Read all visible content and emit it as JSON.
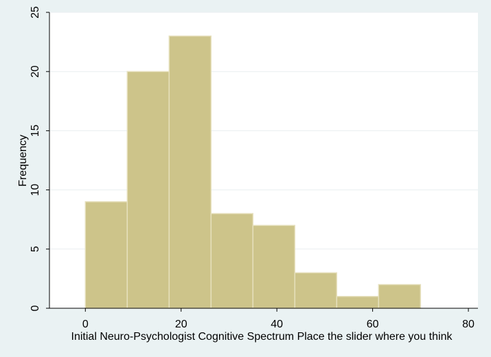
{
  "chart_data": {
    "type": "bar",
    "xlabel": "Initial Neuro-Psychologist Cognitive Spectrum  Place the slider where you think",
    "ylabel": "Frequency",
    "xlim": [
      -7.5,
      82
    ],
    "ylim": [
      0,
      25
    ],
    "xticks": [
      "0",
      "20",
      "40",
      "60",
      "80"
    ],
    "yticks": [
      "0",
      "5",
      "10",
      "15",
      "20",
      "25"
    ],
    "grid": true,
    "bins": [
      {
        "x0": 0.0,
        "x1": 8.75,
        "value": 9
      },
      {
        "x0": 8.75,
        "x1": 17.5,
        "value": 20
      },
      {
        "x0": 17.5,
        "x1": 26.25,
        "value": 23
      },
      {
        "x0": 26.25,
        "x1": 35.0,
        "value": 8
      },
      {
        "x0": 35.0,
        "x1": 43.75,
        "value": 7
      },
      {
        "x0": 43.75,
        "x1": 52.5,
        "value": 3
      },
      {
        "x0": 52.5,
        "x1": 61.25,
        "value": 1
      },
      {
        "x0": 61.25,
        "x1": 70.0,
        "value": 2
      }
    ],
    "colors": {
      "background": "#eaf2f3",
      "plot": "#ffffff",
      "bar_fill": "#cdc48a",
      "bar_edge": "#e6e0bd",
      "grid": "#e9eef0",
      "axis": "#000000"
    }
  }
}
